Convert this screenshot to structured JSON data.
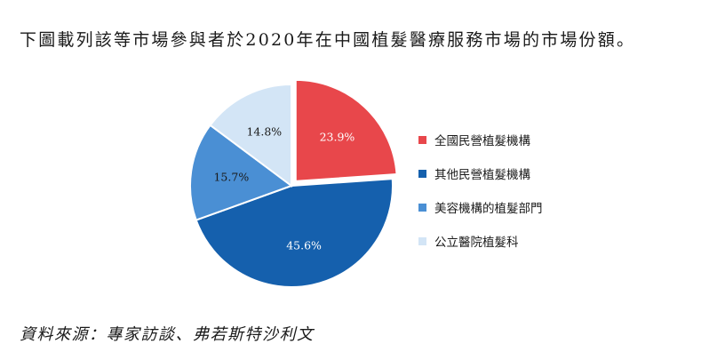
{
  "intro_text": "下圖載列該等市場參與者於2020年在中國植髮醫療服務市場的市場份額。",
  "source_text": "資料來源：專家訪談、弗若斯特沙利文",
  "chart_data": {
    "type": "pie",
    "title": "",
    "legend_position": "right",
    "slices": [
      {
        "label": "全國民營植髮機構",
        "value": 23.9,
        "display": "23.9%",
        "color": "#e8474b",
        "label_color": "#ffffff",
        "exploded": true
      },
      {
        "label": "其他民營植髮機構",
        "value": 45.6,
        "display": "45.6%",
        "color": "#1560ad",
        "label_color": "#ffffff",
        "exploded": false
      },
      {
        "label": "美容機構的植髮部門",
        "value": 15.7,
        "display": "15.7%",
        "color": "#4a8fd4",
        "label_color": "#1a1a1a",
        "exploded": false
      },
      {
        "label": "公立醫院植髮科",
        "value": 14.8,
        "display": "14.8%",
        "color": "#d3e5f6",
        "label_color": "#1a1a1a",
        "exploded": false
      }
    ]
  }
}
